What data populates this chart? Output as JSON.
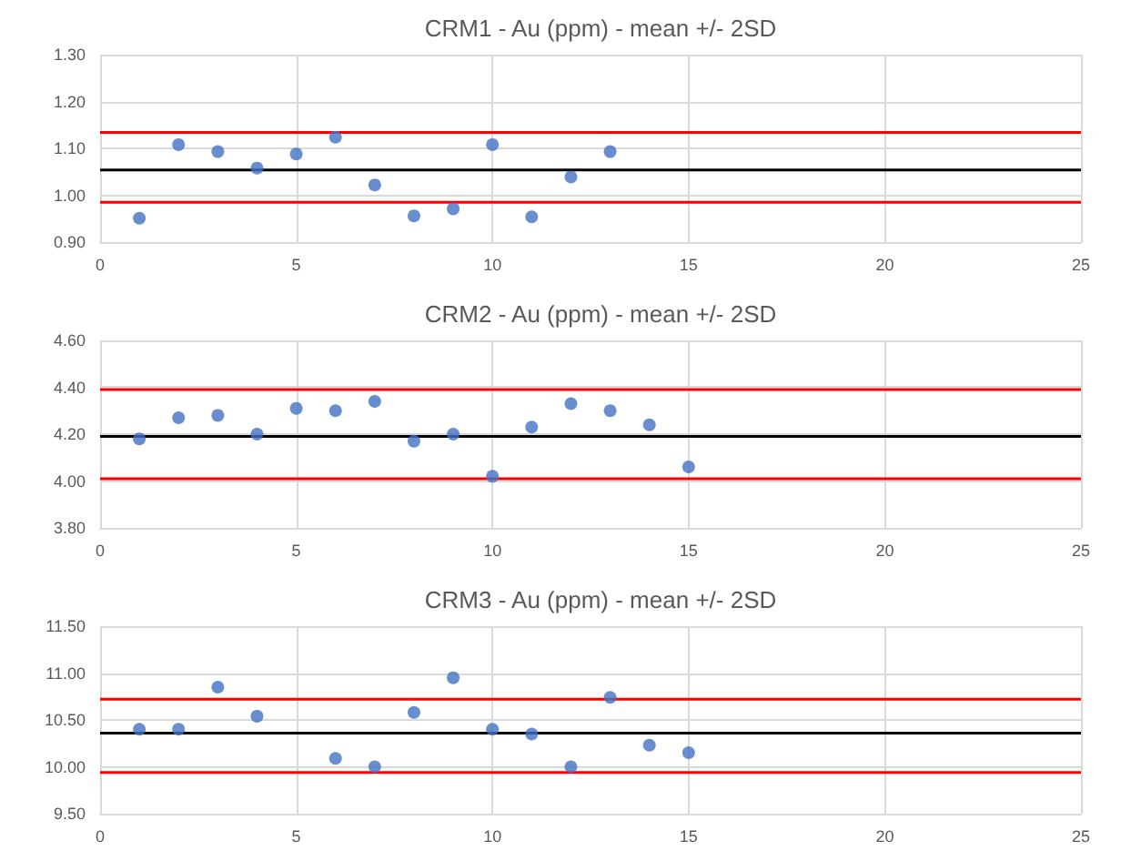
{
  "chart_data": [
    {
      "type": "scatter",
      "title": "CRM1 - Au (ppm) - mean +/- 2SD",
      "x": [
        1,
        2,
        3,
        4,
        5,
        6,
        7,
        8,
        9,
        10,
        11,
        12,
        13
      ],
      "values": [
        0.951,
        1.108,
        1.093,
        1.058,
        1.088,
        1.124,
        1.022,
        0.956,
        0.971,
        1.108,
        0.954,
        1.039,
        1.093
      ],
      "color": "#4472c4",
      "marker": "circle",
      "xlim": [
        0,
        25
      ],
      "xticks": [
        0,
        5,
        10,
        15,
        20,
        25
      ],
      "ylim": [
        0.9,
        1.3
      ],
      "yticks": [
        {
          "value": 0.9,
          "label": "0.90"
        },
        {
          "value": 1.0,
          "label": "1.00"
        },
        {
          "value": 1.1,
          "label": "1.10"
        },
        {
          "value": 1.2,
          "label": "1.20"
        },
        {
          "value": 1.3,
          "label": "1.30"
        }
      ],
      "grid": true,
      "ref_lines": [
        {
          "axis": "y",
          "value": 1.134,
          "color": "#ff0000"
        },
        {
          "axis": "y",
          "value": 1.054,
          "color": "#000000"
        },
        {
          "axis": "y",
          "value": 0.985,
          "color": "#ff0000"
        }
      ]
    },
    {
      "type": "scatter",
      "title": "CRM2 - Au (ppm) - mean +/- 2SD",
      "x": [
        1,
        2,
        3,
        4,
        5,
        6,
        7,
        8,
        9,
        10,
        11,
        12,
        13,
        14,
        15
      ],
      "values": [
        4.18,
        4.27,
        4.28,
        4.2,
        4.31,
        4.3,
        4.34,
        4.17,
        4.2,
        4.02,
        4.23,
        4.33,
        4.3,
        4.24,
        4.06
      ],
      "color": "#4472c4",
      "marker": "circle",
      "xlim": [
        0,
        25
      ],
      "xticks": [
        0,
        5,
        10,
        15,
        20,
        25
      ],
      "ylim": [
        3.8,
        4.6
      ],
      "yticks": [
        {
          "value": 3.8,
          "label": "3.80"
        },
        {
          "value": 4.0,
          "label": "4.00"
        },
        {
          "value": 4.2,
          "label": "4.20"
        },
        {
          "value": 4.4,
          "label": "4.40"
        },
        {
          "value": 4.6,
          "label": "4.60"
        }
      ],
      "grid": true,
      "ref_lines": [
        {
          "axis": "y",
          "value": 4.39,
          "color": "#ff0000"
        },
        {
          "axis": "y",
          "value": 4.19,
          "color": "#000000"
        },
        {
          "axis": "y",
          "value": 4.01,
          "color": "#ff0000"
        }
      ]
    },
    {
      "type": "scatter",
      "title": "CRM3 - Au (ppm) - mean +/- 2SD",
      "x": [
        1,
        2,
        3,
        4,
        6,
        7,
        8,
        9,
        10,
        11,
        12,
        13,
        14,
        15
      ],
      "values": [
        10.4,
        10.4,
        10.85,
        10.54,
        10.09,
        10.0,
        10.58,
        10.95,
        10.4,
        10.35,
        10.0,
        10.74,
        10.23,
        10.15
      ],
      "color": "#4472c4",
      "marker": "circle",
      "xlim": [
        0,
        25
      ],
      "xticks": [
        0,
        5,
        10,
        15,
        20,
        25
      ],
      "ylim": [
        9.5,
        11.5
      ],
      "yticks": [
        {
          "value": 9.5,
          "label": "9.50"
        },
        {
          "value": 10.0,
          "label": "10.00"
        },
        {
          "value": 10.5,
          "label": "10.50"
        },
        {
          "value": 11.0,
          "label": "11.00"
        },
        {
          "value": 11.5,
          "label": "11.50"
        }
      ],
      "grid": true,
      "ref_lines": [
        {
          "axis": "y",
          "value": 10.72,
          "color": "#ff0000"
        },
        {
          "axis": "y",
          "value": 10.36,
          "color": "#000000"
        },
        {
          "axis": "y",
          "value": 9.94,
          "color": "#ff0000"
        }
      ]
    }
  ]
}
